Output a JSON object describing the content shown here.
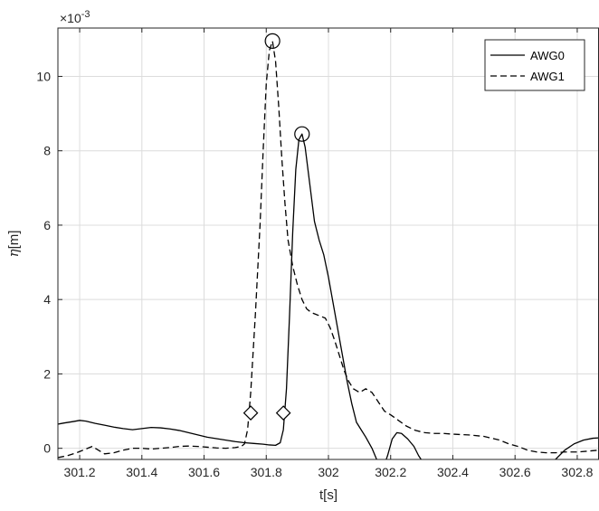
{
  "chart_data": {
    "type": "line",
    "title": "",
    "xlabel": "t[s]",
    "ylabel": "η[m]",
    "exponent_label": "×10",
    "exponent_power": "-3",
    "xlim": [
      301.13,
      302.87
    ],
    "ylim": [
      -0.3,
      11.3
    ],
    "y_scale_factor": 0.001,
    "xticks": [
      301.2,
      301.4,
      301.6,
      301.8,
      302,
      302.2,
      302.4,
      302.6,
      302.8
    ],
    "xtick_labels": [
      "301.2",
      "301.4",
      "301.6",
      "301.8",
      "302",
      "302.2",
      "302.4",
      "302.6",
      "302.8"
    ],
    "yticks": [
      0,
      2,
      4,
      6,
      8,
      10
    ],
    "ytick_labels": [
      "0",
      "2",
      "4",
      "6",
      "8",
      "10"
    ],
    "grid": true,
    "legend_position": "top-right",
    "series": [
      {
        "name": "AWG0",
        "style": "solid",
        "color": "#000000",
        "points": [
          [
            301.13,
            0.65
          ],
          [
            301.15,
            0.68
          ],
          [
            301.18,
            0.72
          ],
          [
            301.2,
            0.75
          ],
          [
            301.22,
            0.73
          ],
          [
            301.25,
            0.67
          ],
          [
            301.28,
            0.62
          ],
          [
            301.31,
            0.57
          ],
          [
            301.34,
            0.53
          ],
          [
            301.37,
            0.5
          ],
          [
            301.4,
            0.53
          ],
          [
            301.43,
            0.56
          ],
          [
            301.46,
            0.55
          ],
          [
            301.49,
            0.52
          ],
          [
            301.52,
            0.48
          ],
          [
            301.55,
            0.42
          ],
          [
            301.58,
            0.36
          ],
          [
            301.61,
            0.3
          ],
          [
            301.64,
            0.26
          ],
          [
            301.67,
            0.22
          ],
          [
            301.7,
            0.18
          ],
          [
            301.73,
            0.15
          ],
          [
            301.76,
            0.13
          ],
          [
            301.79,
            0.11
          ],
          [
            301.81,
            0.09
          ],
          [
            301.83,
            0.08
          ],
          [
            301.845,
            0.15
          ],
          [
            301.855,
            0.5
          ],
          [
            301.865,
            1.6
          ],
          [
            301.875,
            3.6
          ],
          [
            301.885,
            5.8
          ],
          [
            301.895,
            7.5
          ],
          [
            301.905,
            8.3
          ],
          [
            301.915,
            8.45
          ],
          [
            301.925,
            8.1
          ],
          [
            301.94,
            7.1
          ],
          [
            301.955,
            6.1
          ],
          [
            301.97,
            5.6
          ],
          [
            301.985,
            5.2
          ],
          [
            302.0,
            4.6
          ],
          [
            302.015,
            3.9
          ],
          [
            302.03,
            3.2
          ],
          [
            302.045,
            2.5
          ],
          [
            302.06,
            1.8
          ],
          [
            302.075,
            1.2
          ],
          [
            302.09,
            0.7
          ],
          [
            302.105,
            0.5
          ],
          [
            302.12,
            0.3
          ],
          [
            302.14,
            0.0
          ],
          [
            302.16,
            -0.4
          ],
          [
            302.175,
            -0.55
          ],
          [
            302.19,
            -0.2
          ],
          [
            302.205,
            0.25
          ],
          [
            302.22,
            0.42
          ],
          [
            302.235,
            0.4
          ],
          [
            302.255,
            0.25
          ],
          [
            302.275,
            0.05
          ],
          [
            302.29,
            -0.2
          ],
          [
            302.31,
            -0.45
          ],
          [
            302.35,
            -0.55
          ],
          [
            302.4,
            -0.5
          ],
          [
            302.45,
            -0.45
          ],
          [
            302.5,
            -0.4
          ],
          [
            302.55,
            -0.45
          ],
          [
            302.6,
            -0.5
          ],
          [
            302.65,
            -0.5
          ],
          [
            302.7,
            -0.45
          ],
          [
            302.73,
            -0.3
          ],
          [
            302.76,
            -0.05
          ],
          [
            302.79,
            0.12
          ],
          [
            302.82,
            0.22
          ],
          [
            302.85,
            0.27
          ],
          [
            302.87,
            0.28
          ]
        ]
      },
      {
        "name": "AWG1",
        "style": "dashed",
        "color": "#000000",
        "points": [
          [
            301.13,
            -0.25
          ],
          [
            301.16,
            -0.2
          ],
          [
            301.19,
            -0.12
          ],
          [
            301.22,
            -0.02
          ],
          [
            301.24,
            0.05
          ],
          [
            301.26,
            -0.05
          ],
          [
            301.28,
            -0.15
          ],
          [
            301.31,
            -0.12
          ],
          [
            301.34,
            -0.05
          ],
          [
            301.37,
            0.0
          ],
          [
            301.4,
            0.0
          ],
          [
            301.43,
            -0.02
          ],
          [
            301.46,
            0.0
          ],
          [
            301.49,
            0.02
          ],
          [
            301.52,
            0.05
          ],
          [
            301.55,
            0.06
          ],
          [
            301.58,
            0.05
          ],
          [
            301.61,
            0.03
          ],
          [
            301.64,
            0.01
          ],
          [
            301.67,
            0.0
          ],
          [
            301.7,
            0.02
          ],
          [
            301.72,
            0.05
          ],
          [
            301.73,
            0.12
          ],
          [
            301.74,
            0.5
          ],
          [
            301.75,
            1.5
          ],
          [
            301.765,
            3.6
          ],
          [
            301.78,
            6.0
          ],
          [
            301.79,
            8.0
          ],
          [
            301.8,
            9.8
          ],
          [
            301.81,
            10.7
          ],
          [
            301.82,
            10.95
          ],
          [
            301.83,
            10.4
          ],
          [
            301.84,
            9.2
          ],
          [
            301.85,
            7.8
          ],
          [
            301.86,
            6.6
          ],
          [
            301.87,
            5.6
          ],
          [
            301.885,
            4.9
          ],
          [
            301.9,
            4.4
          ],
          [
            301.915,
            4.0
          ],
          [
            301.93,
            3.75
          ],
          [
            301.945,
            3.65
          ],
          [
            301.96,
            3.6
          ],
          [
            301.975,
            3.55
          ],
          [
            301.99,
            3.5
          ],
          [
            302.005,
            3.25
          ],
          [
            302.02,
            2.9
          ],
          [
            302.035,
            2.5
          ],
          [
            302.05,
            2.1
          ],
          [
            302.065,
            1.8
          ],
          [
            302.08,
            1.6
          ],
          [
            302.1,
            1.5
          ],
          [
            302.12,
            1.6
          ],
          [
            302.14,
            1.5
          ],
          [
            302.16,
            1.25
          ],
          [
            302.18,
            1.0
          ],
          [
            302.2,
            0.9
          ],
          [
            302.22,
            0.78
          ],
          [
            302.25,
            0.6
          ],
          [
            302.28,
            0.48
          ],
          [
            302.31,
            0.42
          ],
          [
            302.34,
            0.4
          ],
          [
            302.37,
            0.4
          ],
          [
            302.4,
            0.38
          ],
          [
            302.45,
            0.36
          ],
          [
            302.5,
            0.32
          ],
          [
            302.55,
            0.22
          ],
          [
            302.58,
            0.12
          ],
          [
            302.61,
            0.05
          ],
          [
            302.64,
            -0.05
          ],
          [
            302.67,
            -0.1
          ],
          [
            302.7,
            -0.12
          ],
          [
            302.73,
            -0.12
          ],
          [
            302.76,
            -0.1
          ],
          [
            302.8,
            -0.1
          ],
          [
            302.83,
            -0.08
          ],
          [
            302.87,
            -0.05
          ]
        ]
      }
    ],
    "markers": [
      {
        "series": "AWG1",
        "shape": "circle",
        "x": 301.82,
        "y": 10.95
      },
      {
        "series": "AWG0",
        "shape": "circle",
        "x": 301.915,
        "y": 8.45
      },
      {
        "series": "AWG1",
        "shape": "diamond",
        "x": 301.75,
        "y": 0.95
      },
      {
        "series": "AWG0",
        "shape": "diamond",
        "x": 301.855,
        "y": 0.95
      }
    ]
  }
}
